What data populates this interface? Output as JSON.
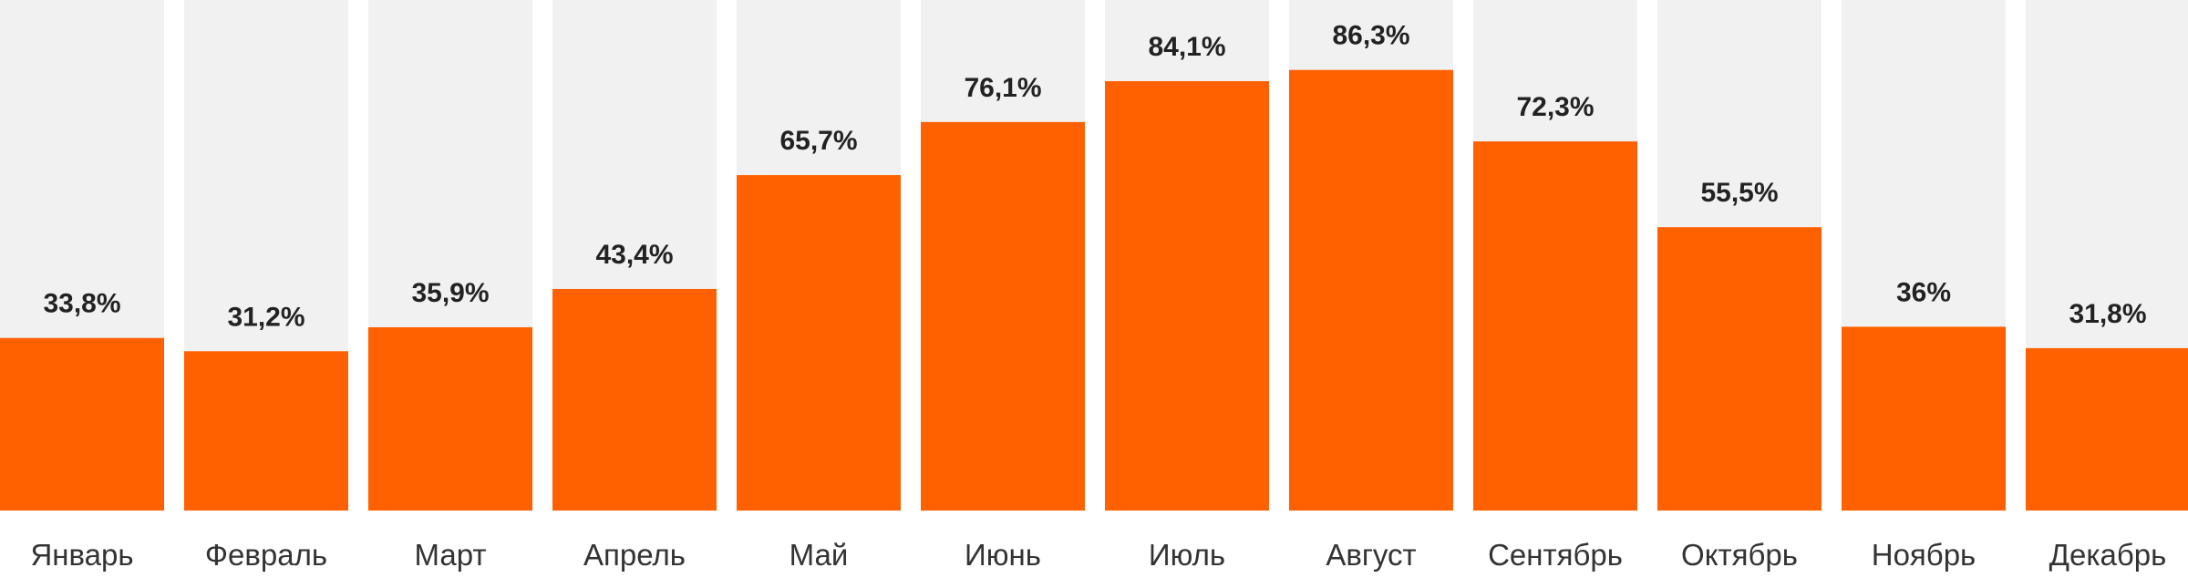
{
  "chart_data": {
    "type": "bar",
    "title": "",
    "xlabel": "",
    "ylabel": "",
    "ylim": [
      0,
      100
    ],
    "grid": false,
    "colors": {
      "bar": "#ff6000",
      "track": "#f1f1f1",
      "value_text": "#222222",
      "category_text": "#333333"
    },
    "categories": [
      "Январь",
      "Февраль",
      "Март",
      "Апрель",
      "Май",
      "Июнь",
      "Июль",
      "Август",
      "Сентябрь",
      "Октябрь",
      "Ноябрь",
      "Декабрь"
    ],
    "values": [
      33.8,
      31.2,
      35.9,
      43.4,
      65.7,
      76.1,
      84.1,
      86.3,
      72.3,
      55.5,
      36,
      31.8
    ],
    "value_labels": [
      "33,8%",
      "31,2%",
      "35,9%",
      "43,4%",
      "65,7%",
      "76,1%",
      "84,1%",
      "86,3%",
      "72,3%",
      "55,5%",
      "36%",
      "31,8%"
    ]
  }
}
